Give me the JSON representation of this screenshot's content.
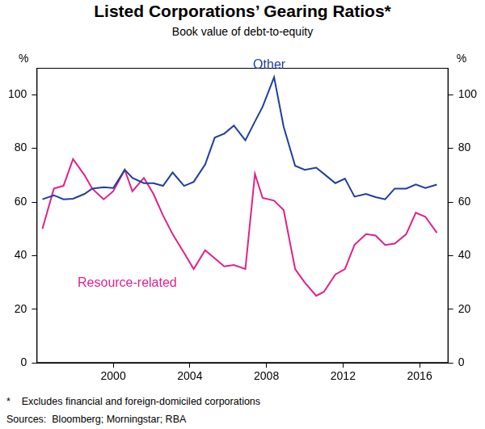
{
  "chart_data": {
    "type": "line",
    "title": "Listed Corporations’ Gearing Ratios*",
    "subtitle": "Book value of debt-to-equity",
    "y_label": "%",
    "notes": [
      "*    Excludes financial and foreign-domiciled corporations",
      "Sources:  Bloomberg; Morningstar; RBA"
    ],
    "x": [
      1996.3,
      1996.9,
      1997.4,
      1997.9,
      1998.5,
      1998.9,
      1999.5,
      2000.0,
      2000.6,
      2001.0,
      2001.6,
      2002.1,
      2002.6,
      2003.1,
      2003.7,
      2004.2,
      2004.8,
      2005.3,
      2005.8,
      2006.3,
      2006.9,
      2007.4,
      2007.8,
      2008.4,
      2008.9,
      2009.5,
      2010.0,
      2010.6,
      2011.0,
      2011.6,
      2012.1,
      2012.6,
      2013.2,
      2013.7,
      2014.2,
      2014.7,
      2015.3,
      2015.8,
      2016.3,
      2016.9
    ],
    "series": [
      {
        "name": "Other",
        "color": "#1f3f9c",
        "values": [
          61,
          62.5,
          61,
          61.2,
          63,
          65,
          65.5,
          65.2,
          72,
          69,
          67,
          67,
          66,
          71,
          66,
          67.5,
          74,
          84,
          85.5,
          88.5,
          83,
          90,
          95.5,
          106.5,
          88,
          73.5,
          72,
          72.8,
          70.5,
          67,
          68.7,
          62,
          63,
          61.8,
          61,
          65,
          65,
          66.5,
          65.2,
          66.5
        ]
      },
      {
        "name": "Resource-related",
        "color": "#e0218a",
        "values": [
          50,
          65,
          66,
          76,
          70,
          65,
          61,
          64,
          72,
          64,
          69,
          63,
          55,
          48,
          41,
          35,
          42,
          39,
          36,
          36.5,
          35,
          70.5,
          61.5,
          60.5,
          57,
          35,
          30,
          25,
          26.5,
          33,
          35,
          44,
          48,
          47.5,
          44,
          44.5,
          48,
          56,
          54.5,
          48.5
        ]
      }
    ],
    "xlim": [
      1996,
      2017.5
    ],
    "xticks": [
      2000,
      2004,
      2008,
      2012,
      2016
    ],
    "ylim": [
      0,
      110
    ],
    "yticks": [
      0,
      20,
      40,
      60,
      80,
      100
    ],
    "grid": false
  }
}
